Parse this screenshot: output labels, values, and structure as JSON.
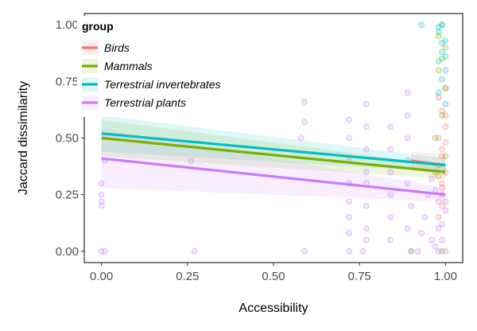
{
  "chart_data": {
    "type": "scatter",
    "xlabel": "Accessibility",
    "ylabel": "Jaccard dissimilarity",
    "xlim": [
      -0.05,
      1.05
    ],
    "ylim": [
      -0.05,
      1.05
    ],
    "x_ticks": [
      0.0,
      0.25,
      0.5,
      0.75,
      1.0
    ],
    "x_tick_labels": [
      "0.00",
      "0.25",
      "0.50",
      "0.75",
      "1.00"
    ],
    "y_ticks": [
      0.0,
      0.25,
      0.5,
      0.75,
      1.0
    ],
    "y_tick_labels": [
      "0.00",
      "0.25",
      "0.50",
      "0.75",
      "1.00"
    ],
    "grid": false,
    "legend": {
      "title": "group",
      "position": "top-left"
    },
    "series": [
      {
        "name": "Birds",
        "color": "#F8766D",
        "fit_line": {
          "x": [
            0.9,
            1.0
          ],
          "y": [
            0.4,
            0.38
          ]
        },
        "points": [
          [
            0.98,
            0.15
          ],
          [
            0.99,
            0.2
          ],
          [
            0.99,
            0.28
          ],
          [
            1.0,
            0.35
          ],
          [
            0.99,
            0.42
          ],
          [
            0.98,
            0.5
          ],
          [
            1.0,
            0.55
          ],
          [
            0.99,
            0.62
          ],
          [
            0.98,
            0.68
          ],
          [
            1.0,
            0.72
          ],
          [
            0.99,
            0.3
          ],
          [
            1.0,
            0.22
          ],
          [
            0.99,
            0.45
          ],
          [
            0.98,
            0.38
          ],
          [
            1.0,
            0.6
          ],
          [
            0.99,
            0.25
          ],
          [
            1.0,
            0.48
          ],
          [
            0.98,
            0.33
          ]
        ]
      },
      {
        "name": "Mammals",
        "color": "#7CAE00",
        "fit_line": {
          "x": [
            0.0,
            1.0
          ],
          "y": [
            0.5,
            0.35
          ]
        },
        "points": [
          [
            0.97,
            0.5
          ],
          [
            0.99,
            0.6
          ],
          [
            1.0,
            0.72
          ],
          [
            0.98,
            0.8
          ],
          [
            0.99,
            0.85
          ],
          [
            1.0,
            0.9
          ],
          [
            0.98,
            0.95
          ],
          [
            0.99,
            1.0
          ],
          [
            0.9,
            0.0
          ],
          [
            0.99,
            0.0
          ],
          [
            0.97,
            0.35
          ],
          [
            1.0,
            0.42
          ]
        ]
      },
      {
        "name": "Terrestrial invertebrates",
        "color": "#00BFC4",
        "fit_line": {
          "x": [
            0.0,
            1.0
          ],
          "y": [
            0.52,
            0.38
          ]
        },
        "points": [
          [
            0.93,
            1.0
          ],
          [
            0.99,
            1.0
          ],
          [
            0.98,
            0.97
          ],
          [
            1.0,
            0.93
          ],
          [
            0.99,
            0.88
          ],
          [
            0.98,
            0.84
          ],
          [
            1.0,
            0.8
          ],
          [
            0.99,
            0.76
          ],
          [
            0.98,
            0.7
          ],
          [
            1.0,
            0.65
          ],
          [
            0.99,
            0.92
          ],
          [
            0.98,
            0.99
          ],
          [
            1.0,
            0.86
          ]
        ]
      },
      {
        "name": "Terrestrial plants",
        "color": "#C77CFF",
        "fit_line": {
          "x": [
            0.0,
            1.0
          ],
          "y": [
            0.41,
            0.25
          ]
        },
        "points": [
          [
            0.0,
            0.0
          ],
          [
            0.01,
            0.0
          ],
          [
            0.0,
            0.25
          ],
          [
            0.0,
            0.3
          ],
          [
            0.0,
            0.22
          ],
          [
            0.0,
            0.2
          ],
          [
            0.01,
            0.4
          ],
          [
            0.27,
            0.0
          ],
          [
            0.26,
            0.4
          ],
          [
            0.59,
            0.0
          ],
          [
            0.58,
            0.5
          ],
          [
            0.59,
            0.66
          ],
          [
            0.59,
            0.57
          ],
          [
            0.72,
            0.0
          ],
          [
            0.72,
            0.08
          ],
          [
            0.72,
            0.15
          ],
          [
            0.72,
            0.22
          ],
          [
            0.72,
            0.3
          ],
          [
            0.72,
            0.4
          ],
          [
            0.72,
            0.5
          ],
          [
            0.72,
            0.58
          ],
          [
            0.76,
            0.0
          ],
          [
            0.77,
            0.1
          ],
          [
            0.77,
            0.2
          ],
          [
            0.77,
            0.3
          ],
          [
            0.77,
            0.35
          ],
          [
            0.77,
            0.45
          ],
          [
            0.77,
            0.55
          ],
          [
            0.77,
            0.65
          ],
          [
            0.77,
            0.05
          ],
          [
            0.84,
            0.05
          ],
          [
            0.84,
            0.15
          ],
          [
            0.84,
            0.25
          ],
          [
            0.84,
            0.35
          ],
          [
            0.84,
            0.45
          ],
          [
            0.84,
            0.55
          ],
          [
            0.89,
            0.1
          ],
          [
            0.89,
            0.3
          ],
          [
            0.89,
            0.5
          ],
          [
            0.89,
            0.6
          ],
          [
            0.89,
            0.7
          ],
          [
            0.89,
            0.4
          ],
          [
            0.9,
            0.2
          ],
          [
            0.9,
            0.0
          ],
          [
            0.92,
            0.0
          ],
          [
            0.93,
            0.08
          ],
          [
            0.94,
            0.15
          ],
          [
            0.95,
            0.25
          ],
          [
            0.96,
            0.05
          ],
          [
            0.96,
            0.32
          ],
          [
            0.97,
            0.02
          ],
          [
            0.98,
            0.0
          ],
          [
            0.98,
            0.1
          ],
          [
            0.99,
            0.05
          ],
          [
            1.0,
            0.0
          ],
          [
            0.99,
            0.12
          ],
          [
            1.0,
            0.18
          ],
          [
            0.98,
            0.22
          ],
          [
            0.97,
            0.27
          ]
        ]
      }
    ]
  }
}
